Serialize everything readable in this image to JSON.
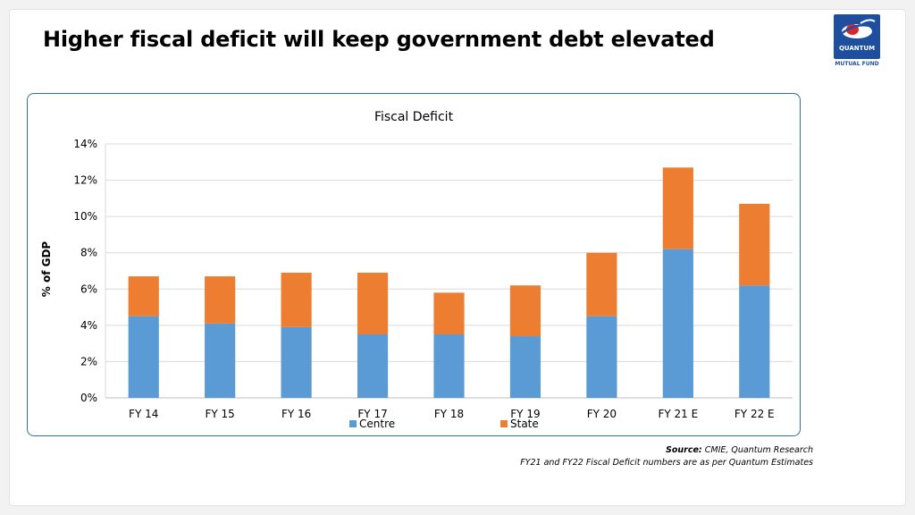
{
  "slide": {
    "title": "Higher fiscal deficit will keep government debt elevated",
    "logo": {
      "word": "QUANTUM",
      "sub": "MUTUAL FUND",
      "color": "#1d4f9e"
    },
    "source_label": "Source:",
    "source_text": "CMIE, Quantum Research",
    "note": "FY21 and FY22 Fiscal Deficit numbers are as per Quantum Estimates"
  },
  "chart_data": {
    "type": "bar",
    "stacked": true,
    "title": "Fiscal Deficit",
    "xlabel": "",
    "ylabel": "% of GDP",
    "ylim": [
      0,
      14
    ],
    "yticks": [
      0,
      2,
      4,
      6,
      8,
      10,
      12,
      14
    ],
    "ytick_labels": [
      "0%",
      "2%",
      "4%",
      "6%",
      "8%",
      "10%",
      "12%",
      "14%"
    ],
    "grid": true,
    "legend_position": "bottom",
    "categories": [
      "FY 14",
      "FY 15",
      "FY 16",
      "FY 17",
      "FY 18",
      "FY 19",
      "FY 20",
      "FY 21 E",
      "FY 22 E"
    ],
    "series": [
      {
        "name": "Centre",
        "color": "#5b9bd5",
        "values": [
          4.5,
          4.1,
          3.9,
          3.5,
          3.5,
          3.4,
          4.5,
          8.2,
          6.2
        ]
      },
      {
        "name": "State",
        "color": "#ed7d31",
        "values": [
          2.2,
          2.6,
          3.0,
          3.4,
          2.3,
          2.8,
          3.5,
          4.5,
          4.5
        ]
      }
    ]
  }
}
